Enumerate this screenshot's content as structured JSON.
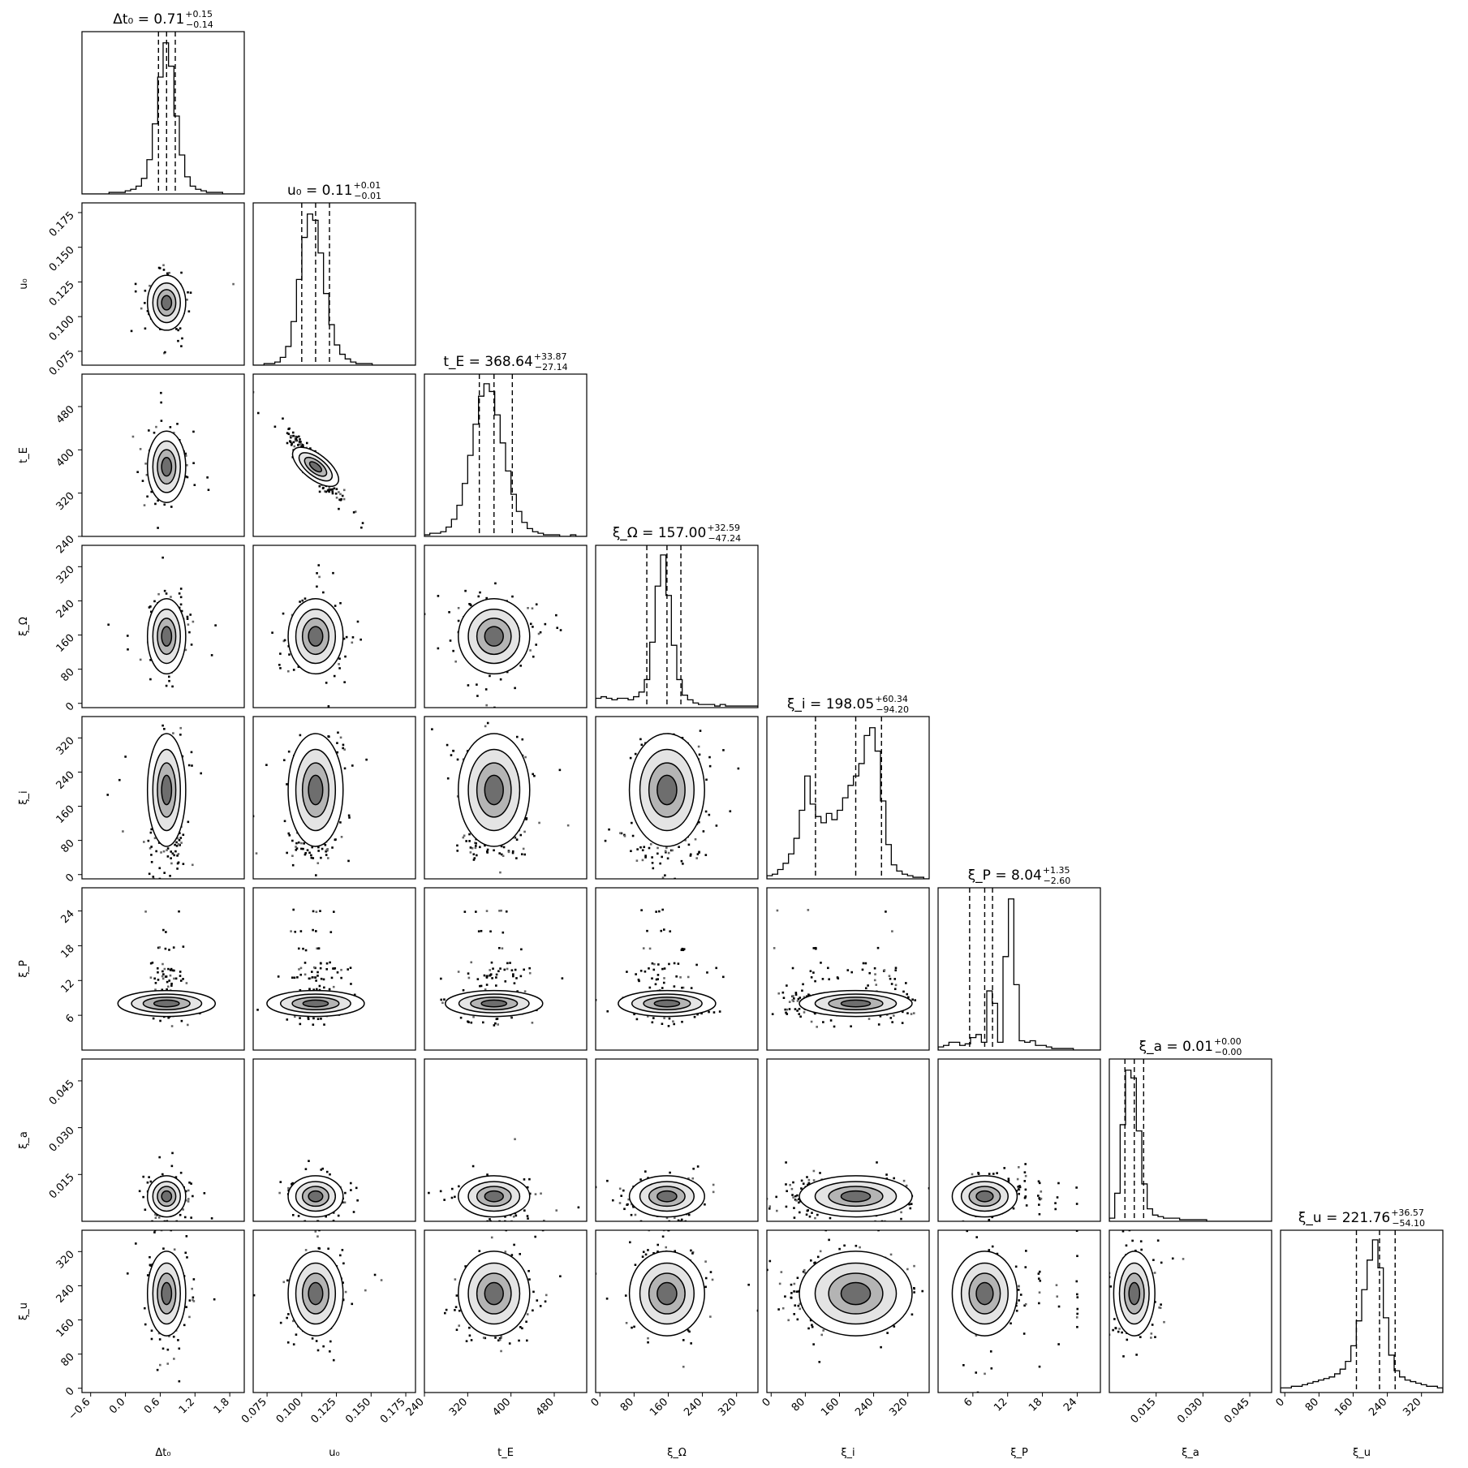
{
  "chart_data": {
    "type": "corner",
    "parameters": [
      {
        "key": "dt0",
        "label": "Δt₀",
        "title": "Δt₀ = 0.71",
        "title_main": "Δt₀ = 0.71",
        "title_plus": "+0.15",
        "title_minus": "−0.14",
        "median": 0.71,
        "err_plus": 0.15,
        "err_minus": 0.14,
        "range": [
          -0.75,
          2.05
        ],
        "ticks": [
          -0.6,
          0.0,
          0.6,
          1.2,
          1.8
        ],
        "tick_labels": [
          "−0.6",
          "0.0",
          "0.6",
          "1.2",
          "1.8"
        ],
        "quantiles": [
          0.57,
          0.71,
          0.86
        ],
        "mode": "gauss",
        "sigma": 0.15,
        "hist": [
          0.0,
          0.0,
          0.0,
          0.0,
          0.0,
          0.01,
          0.01,
          0.01,
          0.02,
          0.03,
          0.05,
          0.1,
          0.22,
          0.45,
          0.75,
          0.97,
          0.82,
          0.5,
          0.25,
          0.11,
          0.05,
          0.03,
          0.02,
          0.01,
          0.01,
          0.01,
          0.0,
          0.0,
          0.0,
          0.0
        ]
      },
      {
        "key": "u0",
        "label": "u₀",
        "title": "u₀ = 0.11",
        "title_main": "u₀ = 0.11",
        "title_plus": "+0.01",
        "title_minus": "−0.01",
        "median": 0.11,
        "err_plus": 0.01,
        "err_minus": 0.01,
        "range": [
          0.065,
          0.182
        ],
        "ticks": [
          0.075,
          0.1,
          0.125,
          0.15,
          0.175
        ],
        "tick_labels": [
          "0.075",
          "0.100",
          "0.125",
          "0.150",
          "0.175"
        ],
        "quantiles": [
          0.1,
          0.11,
          0.12
        ],
        "mode": "gauss",
        "sigma": 0.009,
        "hist": [
          0.0,
          0.0,
          0.01,
          0.01,
          0.02,
          0.05,
          0.12,
          0.28,
          0.55,
          0.82,
          0.97,
          0.93,
          0.72,
          0.46,
          0.26,
          0.13,
          0.07,
          0.04,
          0.02,
          0.01,
          0.01,
          0.01,
          0.0,
          0.0,
          0.0,
          0.0,
          0.0,
          0.0,
          0.0,
          0.0
        ]
      },
      {
        "key": "tE",
        "label": "t_E",
        "title": "t_E = 368.64",
        "title_main": "t_E = 368.64",
        "title_plus": "+33.87",
        "title_minus": "−27.14",
        "median": 368.64,
        "err_plus": 33.87,
        "err_minus": 27.14,
        "range": [
          240,
          540
        ],
        "ticks": [
          240,
          320,
          400,
          480
        ],
        "tick_labels": [
          "240",
          "320",
          "400",
          "480"
        ],
        "quantiles": [
          341.5,
          368.64,
          402.5
        ],
        "mode": "gauss",
        "sigma": 30,
        "hist": [
          0.01,
          0.02,
          0.02,
          0.03,
          0.06,
          0.11,
          0.2,
          0.34,
          0.52,
          0.72,
          0.9,
          0.98,
          0.93,
          0.78,
          0.6,
          0.42,
          0.27,
          0.16,
          0.09,
          0.05,
          0.03,
          0.02,
          0.01,
          0.01,
          0.01,
          0.0,
          0.0,
          0.01,
          0.0,
          0.0
        ]
      },
      {
        "key": "xiOmega",
        "label": "ξ_Ω",
        "title": "ξ_Ω = 157.00",
        "title_main": "ξ_Ω = 157.00",
        "title_plus": "+32.59",
        "title_minus": "−47.24",
        "median": 157.0,
        "err_plus": 32.59,
        "err_minus": 47.24,
        "range": [
          -10,
          370
        ],
        "ticks": [
          0,
          80,
          160,
          240,
          320
        ],
        "tick_labels": [
          "0",
          "80",
          "160",
          "240",
          "320"
        ],
        "quantiles": [
          109.8,
          157.0,
          189.6
        ],
        "mode": "gauss",
        "sigma": 40,
        "hist": [
          0.06,
          0.07,
          0.06,
          0.05,
          0.06,
          0.06,
          0.05,
          0.07,
          0.1,
          0.18,
          0.42,
          0.78,
          0.98,
          0.72,
          0.4,
          0.18,
          0.08,
          0.05,
          0.03,
          0.02,
          0.02,
          0.02,
          0.01,
          0.02,
          0.01,
          0.01,
          0.01,
          0.01,
          0.01,
          0.01
        ]
      },
      {
        "key": "xii",
        "label": "ξ_i",
        "title": "ξ_i = 198.05",
        "title_main": "ξ_i = 198.05",
        "title_plus": "+60.34",
        "title_minus": "−94.20",
        "median": 198.05,
        "err_plus": 60.34,
        "err_minus": 94.2,
        "range": [
          -10,
          370
        ],
        "ticks": [
          0,
          80,
          160,
          240,
          320
        ],
        "tick_labels": [
          "0",
          "80",
          "160",
          "240",
          "320"
        ],
        "quantiles": [
          103.85,
          198.05,
          258.39
        ],
        "mode": "bimodal",
        "sigma": 60,
        "hist": [
          0.02,
          0.03,
          0.06,
          0.1,
          0.16,
          0.26,
          0.44,
          0.66,
          0.48,
          0.4,
          0.36,
          0.42,
          0.38,
          0.44,
          0.52,
          0.6,
          0.66,
          0.74,
          0.92,
          0.97,
          0.82,
          0.5,
          0.22,
          0.09,
          0.05,
          0.03,
          0.02,
          0.01,
          0.01,
          0.0
        ]
      },
      {
        "key": "xiP",
        "label": "ξ_P",
        "title": "ξ_P = 8.04",
        "title_main": "ξ_P = 8.04",
        "title_plus": "+1.35",
        "title_minus": "−2.60",
        "median": 8.04,
        "err_plus": 1.35,
        "err_minus": 2.6,
        "range": [
          0,
          28
        ],
        "ticks": [
          6,
          12,
          18,
          24
        ],
        "tick_labels": [
          "6",
          "12",
          "18",
          "24"
        ],
        "quantiles": [
          5.44,
          8.04,
          9.39
        ],
        "mode": "discrete",
        "sigma": 2,
        "hist": [
          0.02,
          0.03,
          0.05,
          0.05,
          0.03,
          0.04,
          0.08,
          0.1,
          0.05,
          0.38,
          0.3,
          0.05,
          0.6,
          0.97,
          0.42,
          0.06,
          0.05,
          0.06,
          0.03,
          0.03,
          0.02,
          0.01,
          0.01,
          0.01,
          0.01,
          0.0,
          0.0,
          0.0,
          0.0,
          0.0
        ]
      },
      {
        "key": "xia",
        "label": "ξ_a",
        "title": "ξ_a = 0.01",
        "title_main": "ξ_a = 0.01",
        "title_plus": "+0.00",
        "title_minus": "−0.00",
        "median": 0.008,
        "err_plus": 0.003,
        "err_minus": 0.003,
        "range": [
          0.0,
          0.052
        ],
        "ticks": [
          0.015,
          0.03,
          0.045
        ],
        "tick_labels": [
          "0.015",
          "0.030",
          "0.045"
        ],
        "quantiles": [
          0.005,
          0.008,
          0.011
        ],
        "mode": "gauss",
        "sigma": 0.003,
        "hist": [
          0.02,
          0.18,
          0.62,
          0.97,
          0.92,
          0.58,
          0.24,
          0.08,
          0.04,
          0.03,
          0.02,
          0.02,
          0.02,
          0.01,
          0.01,
          0.01,
          0.01,
          0.01,
          0.0,
          0.0,
          0.0,
          0.0,
          0.0,
          0.0,
          0.0,
          0.0,
          0.0,
          0.0,
          0.0,
          0.0
        ]
      },
      {
        "key": "xiu",
        "label": "ξ_u",
        "title": "ξ_u = 221.76",
        "title_main": "ξ_u = 221.76",
        "title_plus": "+36.57",
        "title_minus": "−54.10",
        "median": 221.76,
        "err_plus": 36.57,
        "err_minus": 54.1,
        "range": [
          -10,
          370
        ],
        "ticks": [
          0,
          80,
          160,
          240,
          320
        ],
        "tick_labels": [
          "0",
          "80",
          "160",
          "240",
          "320"
        ],
        "quantiles": [
          167.66,
          221.76,
          258.33
        ],
        "mode": "gauss",
        "sigma": 45,
        "hist": [
          0.03,
          0.03,
          0.04,
          0.04,
          0.05,
          0.06,
          0.07,
          0.08,
          0.09,
          0.1,
          0.12,
          0.15,
          0.2,
          0.3,
          0.46,
          0.66,
          0.85,
          0.98,
          0.8,
          0.48,
          0.24,
          0.14,
          0.1,
          0.08,
          0.07,
          0.06,
          0.05,
          0.04,
          0.04,
          0.03
        ]
      }
    ],
    "correlations": [
      {
        "pair": [
          "u0",
          "tE"
        ],
        "rho": -0.92
      }
    ]
  }
}
